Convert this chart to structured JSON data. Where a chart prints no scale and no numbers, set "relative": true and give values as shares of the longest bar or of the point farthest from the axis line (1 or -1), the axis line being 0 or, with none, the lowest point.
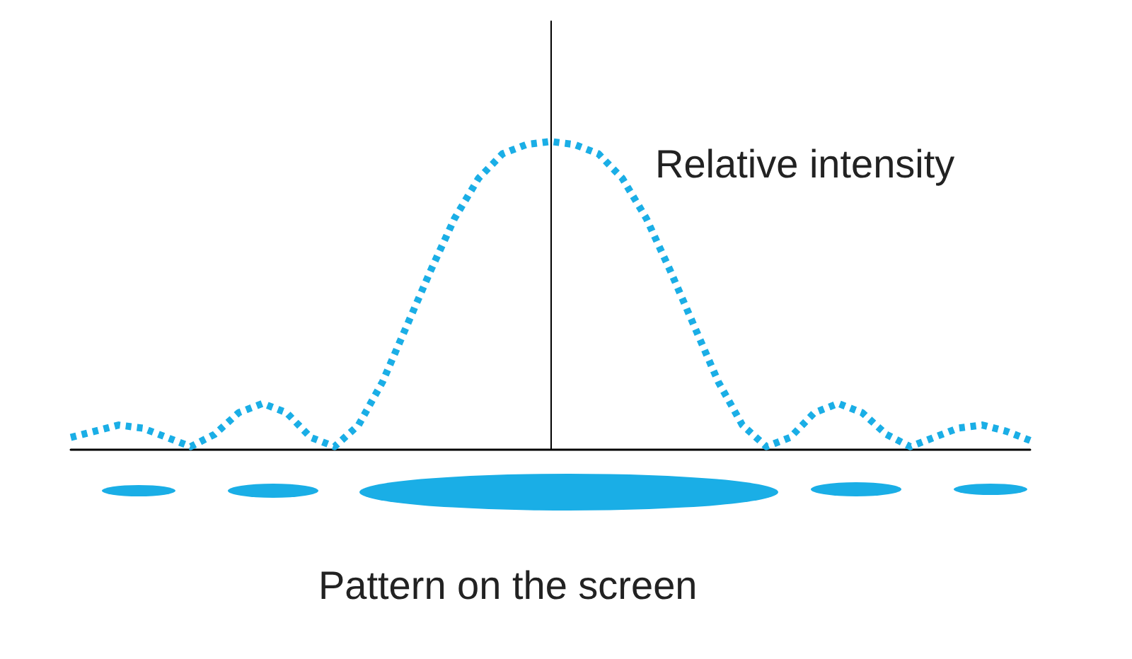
{
  "chart_data": {
    "type": "line",
    "relative": true,
    "ylabel": "Relative intensity",
    "xlabel": "Pattern on the screen",
    "categories": [
      null,
      null,
      null,
      null,
      null,
      null,
      null,
      null,
      null,
      null,
      null,
      null,
      null,
      null,
      null,
      null,
      null,
      null,
      null,
      null,
      null,
      null,
      null,
      null,
      null,
      null,
      null,
      null,
      null,
      null,
      null,
      null,
      null,
      null,
      null,
      null,
      null,
      null,
      null,
      null,
      null
    ],
    "series": [
      {
        "color": "#1aaee6",
        "values": [
          0.04,
          0.06,
          0.08,
          0.07,
          0.04,
          0.01,
          0.05,
          0.12,
          0.15,
          0.12,
          0.04,
          0.01,
          0.08,
          0.22,
          0.4,
          0.58,
          0.75,
          0.88,
          0.96,
          0.99,
          1,
          0.99,
          0.96,
          0.88,
          0.75,
          0.58,
          0.4,
          0.22,
          0.08,
          0.01,
          0.04,
          0.12,
          0.15,
          0.12,
          0.05,
          0.01,
          0.04,
          0.07,
          0.08,
          0.06,
          0.03
        ]
      }
    ],
    "line_style": "dotted",
    "marker": "none",
    "grid": false
  }
}
